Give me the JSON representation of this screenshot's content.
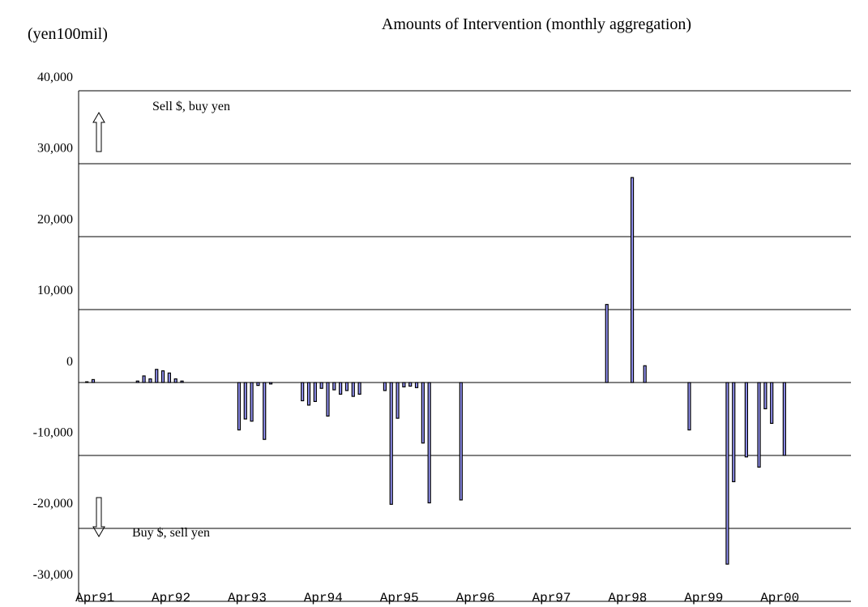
{
  "chart_data": {
    "type": "bar",
    "title": "Amounts of Intervention (monthly aggregation)",
    "y_label": "(yen100mil)",
    "annotations": [
      "Sell $, buy yen",
      "Buy $, sell yen"
    ],
    "color": "#9999ff",
    "x": [
      0,
      1,
      8,
      9,
      10,
      11,
      12,
      13,
      14,
      15,
      24,
      25,
      26,
      27,
      28,
      29,
      34,
      35,
      36,
      37,
      38,
      39,
      40,
      41,
      42,
      43,
      47,
      48,
      49,
      50,
      51,
      52,
      53,
      54,
      59,
      82,
      86,
      88,
      95,
      101,
      102,
      104,
      106,
      107,
      108,
      110
    ],
    "values": [
      100,
      400,
      200,
      900,
      500,
      1800,
      1600,
      1300,
      500,
      200,
      -6500,
      -5000,
      -5300,
      -400,
      -7800,
      -200,
      -2500,
      -3100,
      -2600,
      -800,
      -4600,
      -1000,
      -1600,
      -1100,
      -1900,
      -1600,
      -1100,
      -16700,
      -4900,
      -600,
      -500,
      -700,
      -8300,
      -16500,
      -16100,
      10700,
      28100,
      2300,
      -6500,
      -24900,
      -13600,
      -10200,
      -11600,
      -3600,
      -5600,
      -10000
    ],
    "xlim": [
      -1.3,
      120.5
    ],
    "xticks": [
      {
        "value": 0,
        "label": "Apr91"
      },
      {
        "value": 12,
        "label": "Apr92"
      },
      {
        "value": 24,
        "label": "Apr93"
      },
      {
        "value": 36,
        "label": "Apr94"
      },
      {
        "value": 48,
        "label": "Apr95"
      },
      {
        "value": 60,
        "label": "Apr96"
      },
      {
        "value": 72,
        "label": "Apr97"
      },
      {
        "value": 84,
        "label": "Apr98"
      },
      {
        "value": 96,
        "label": "Apr99"
      },
      {
        "value": 108,
        "label": "Apr00"
      }
    ],
    "ylim": [
      -30000,
      40000
    ],
    "yticks": [
      {
        "value": 40000,
        "label": "40,000"
      },
      {
        "value": 30000,
        "label": "30,000"
      },
      {
        "value": 20000,
        "label": "20,000"
      },
      {
        "value": 10000,
        "label": "10,000"
      },
      0,
      {
        "value": -10000,
        "label": "-10,000"
      },
      {
        "value": -20000,
        "label": "-20,000"
      },
      {
        "value": -30000,
        "label": "-30,000"
      }
    ],
    "grid": true
  }
}
